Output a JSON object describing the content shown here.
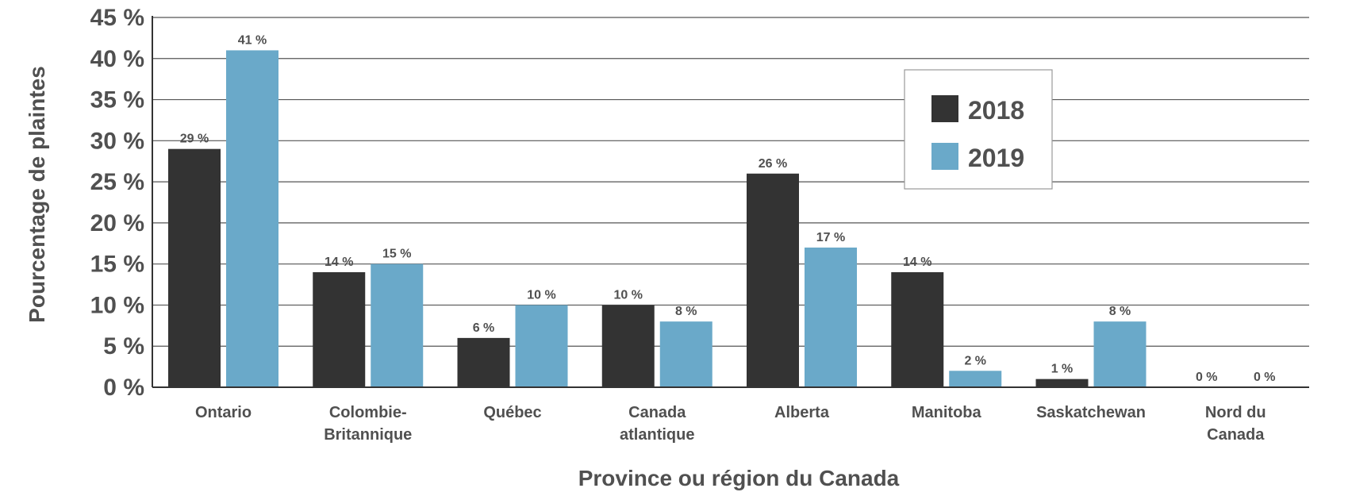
{
  "chart_data": {
    "type": "bar",
    "xlabel": "Province ou région du Canada",
    "ylabel": "Pourcentage de plaintes",
    "ylim": [
      0,
      45
    ],
    "ytick_step": 5,
    "ytick_suffix": " %",
    "grid": true,
    "legend_position": "top-right",
    "categories": [
      [
        "Ontario"
      ],
      [
        "Colombie-",
        "Britannique"
      ],
      [
        "Québec"
      ],
      [
        "Canada",
        "atlantique"
      ],
      [
        "Alberta"
      ],
      [
        "Manitoba"
      ],
      [
        "Saskatchewan"
      ],
      [
        "Nord du",
        "Canada"
      ]
    ],
    "series": [
      {
        "name": "2018",
        "color": "#333333",
        "values": [
          29,
          14,
          6,
          10,
          26,
          14,
          1,
          0
        ],
        "labels": [
          "29 %",
          "14 %",
          "6 %",
          "10 %",
          "26 %",
          "14 %",
          "1 %",
          "0 %"
        ]
      },
      {
        "name": "2019",
        "color": "#6aa9c9",
        "values": [
          41,
          15,
          10,
          8,
          17,
          2,
          8,
          0
        ],
        "labels": [
          "41 %",
          "15 %",
          "10 %",
          "8 %",
          "17 %",
          "2 %",
          "8 %",
          "0 %"
        ]
      }
    ]
  }
}
